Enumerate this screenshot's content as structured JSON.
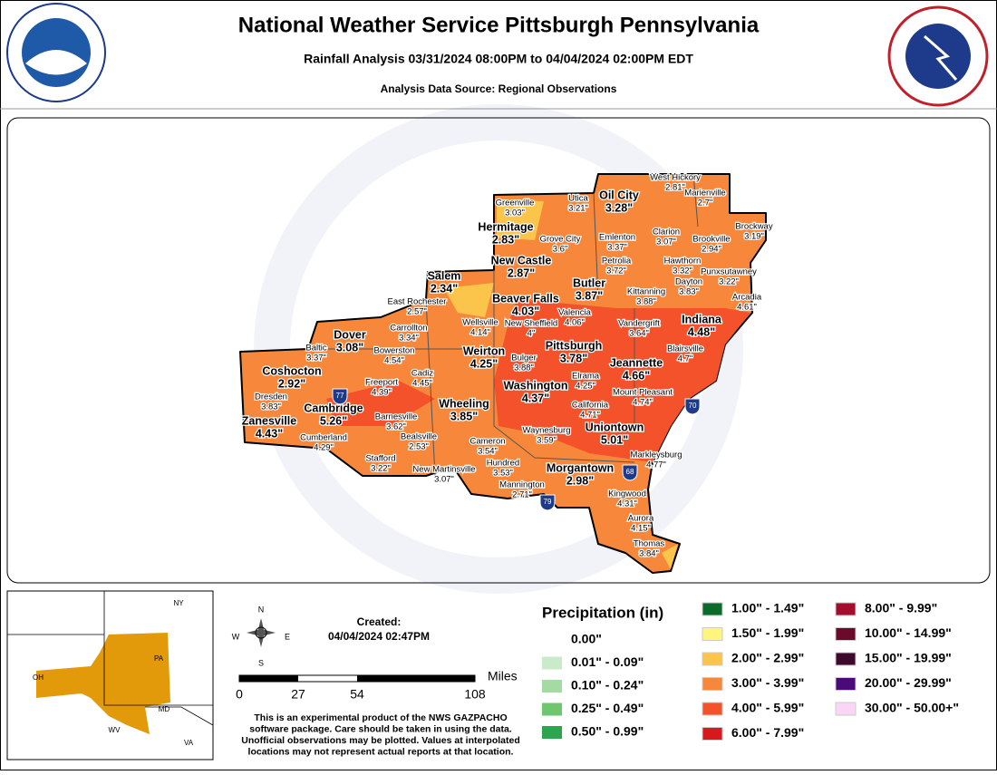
{
  "header": {
    "title": "National Weather Service Pittsburgh Pennsylvania",
    "subtitle": "Rainfall Analysis 03/31/2024 08:00PM to 04/04/2024 02:00PM EDT",
    "source": "Analysis Data Source: Regional Observations"
  },
  "stations": [
    {
      "name": "West Hickory",
      "value": "2.81\""
    },
    {
      "name": "Marienville",
      "value": "2.7\""
    },
    {
      "name": "Greenville",
      "value": "3.03\""
    },
    {
      "name": "Utica",
      "value": "3.21\""
    },
    {
      "name": "Oil City",
      "value": "3.28\""
    },
    {
      "name": "Brockway",
      "value": "3.19\""
    },
    {
      "name": "Hermitage",
      "value": "2.83\""
    },
    {
      "name": "Clarion",
      "value": "3.07\""
    },
    {
      "name": "Grove City",
      "value": "3.6\""
    },
    {
      "name": "Emlenton",
      "value": "3.37\""
    },
    {
      "name": "Brookville",
      "value": "2.94\""
    },
    {
      "name": "New Castle",
      "value": "2.87\""
    },
    {
      "name": "Petrolia",
      "value": "3.72\""
    },
    {
      "name": "Hawthorn",
      "value": "3.32\""
    },
    {
      "name": "Punxsutawney",
      "value": "3.22\""
    },
    {
      "name": "Salem",
      "value": "2.34\""
    },
    {
      "name": "Butler",
      "value": "3.87\""
    },
    {
      "name": "Dayton",
      "value": "3.83\""
    },
    {
      "name": "Kittanning",
      "value": "3.88\""
    },
    {
      "name": "Arcadia",
      "value": "4.61\""
    },
    {
      "name": "East Rochester",
      "value": "2.57\""
    },
    {
      "name": "Beaver Falls",
      "value": "4.03\""
    },
    {
      "name": "Valencia",
      "value": "4.06\""
    },
    {
      "name": "Carrollton",
      "value": "3.34\""
    },
    {
      "name": "Wellsville",
      "value": "4.14\""
    },
    {
      "name": "New Sheffield",
      "value": "4\""
    },
    {
      "name": "Vandergrift",
      "value": "3.64\""
    },
    {
      "name": "Indiana",
      "value": "4.48\""
    },
    {
      "name": "Dover",
      "value": "3.08\""
    },
    {
      "name": "Baltic",
      "value": "3.37\""
    },
    {
      "name": "Pittsburgh",
      "value": "3.78\""
    },
    {
      "name": "Bowerston",
      "value": "4.54\""
    },
    {
      "name": "Weirton",
      "value": "4.25\""
    },
    {
      "name": "Blairsville",
      "value": "4.7\""
    },
    {
      "name": "Bulger",
      "value": "3.88\""
    },
    {
      "name": "Coshocton",
      "value": "2.92\""
    },
    {
      "name": "Cadiz",
      "value": "4.45\""
    },
    {
      "name": "Jeannette",
      "value": "4.66\""
    },
    {
      "name": "Elrama",
      "value": "4.25\""
    },
    {
      "name": "Freeport",
      "value": "4.39\""
    },
    {
      "name": "Washington",
      "value": "4.37\""
    },
    {
      "name": "Mount Pleasant",
      "value": "4.74\""
    },
    {
      "name": "Dresden",
      "value": "3.83\""
    },
    {
      "name": "Wheeling",
      "value": "3.85\""
    },
    {
      "name": "Cambridge",
      "value": "5.26\""
    },
    {
      "name": "California",
      "value": "4.71\""
    },
    {
      "name": "Barnesville",
      "value": "3.62\""
    },
    {
      "name": "Zanesville",
      "value": "4.43\""
    },
    {
      "name": "Waynesburg",
      "value": "3.59\""
    },
    {
      "name": "Uniontown",
      "value": "5.01\""
    },
    {
      "name": "Cumberland",
      "value": "4.29\""
    },
    {
      "name": "Bealsville",
      "value": "2.53\""
    },
    {
      "name": "Cameron",
      "value": "3.54\""
    },
    {
      "name": "Markleysburg",
      "value": "4.77\""
    },
    {
      "name": "Hundred",
      "value": "3.53\""
    },
    {
      "name": "Stafford",
      "value": "3.22\""
    },
    {
      "name": "New Martinsville",
      "value": "3.07\""
    },
    {
      "name": "Morgantown",
      "value": "2.98\""
    },
    {
      "name": "Mannington",
      "value": "2.71\""
    },
    {
      "name": "Kingwood",
      "value": "4.31\""
    },
    {
      "name": "Aurora",
      "value": "4.15\""
    },
    {
      "name": "Thomas",
      "value": "3.84\""
    }
  ],
  "highways": [
    "77",
    "70",
    "68",
    "79"
  ],
  "inset": {
    "labels": [
      "NY",
      "PA",
      "OH",
      "MD",
      "WV",
      "VA"
    ]
  },
  "compass": [
    "N",
    "S",
    "E",
    "W"
  ],
  "created": {
    "label": "Created:",
    "date": "04/04/2024 02:47PM"
  },
  "scale": {
    "unit": "Miles",
    "ticks": [
      "0",
      "27",
      "54",
      "108"
    ]
  },
  "disclaimer": [
    "This is an experimental product of the NWS GAZPACHO",
    "software package. Care should be taken in using the data.",
    "Unofficial observations may be plotted. Values at interpolated",
    "locations may not represent actual reports at that location."
  ],
  "legend": {
    "title": "Precipitation (in)",
    "items": [
      {
        "label": "0.00\"",
        "color": "#ffffff"
      },
      {
        "label": "0.01\" - 0.09\"",
        "color": "#c9ebc9"
      },
      {
        "label": "0.10\" - 0.24\"",
        "color": "#a3dba3"
      },
      {
        "label": "0.25\" - 0.49\"",
        "color": "#6fc66f"
      },
      {
        "label": "0.50\" - 0.99\"",
        "color": "#2da44e"
      },
      {
        "label": "1.00\" - 1.49\"",
        "color": "#0a6b2a"
      },
      {
        "label": "1.50\" - 1.99\"",
        "color": "#fdf57c"
      },
      {
        "label": "2.00\" - 2.99\"",
        "color": "#fbc44a"
      },
      {
        "label": "3.00\" - 3.99\"",
        "color": "#f7883b"
      },
      {
        "label": "4.00\" - 5.99\"",
        "color": "#f3522b"
      },
      {
        "label": "6.00\" - 7.99\"",
        "color": "#d7191c"
      },
      {
        "label": "8.00\" - 9.99\"",
        "color": "#a50d2e"
      },
      {
        "label": "10.00\" - 14.99\"",
        "color": "#6b0a2a"
      },
      {
        "label": "15.00\" - 19.99\"",
        "color": "#3d0a2e"
      },
      {
        "label": "20.00\" - 29.99\"",
        "color": "#4a0a7a"
      },
      {
        "label": "30.00\" - 50.00+\"",
        "color": "#f9d6f5"
      }
    ]
  }
}
